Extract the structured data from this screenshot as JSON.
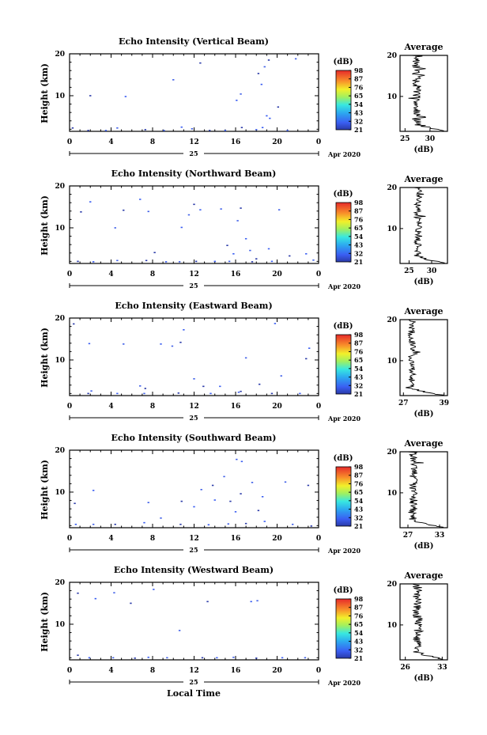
{
  "figure": {
    "xlabel": "Local Time",
    "date_day": "25",
    "date_label": "Apr 2020",
    "cbar_unit": "(dB)",
    "avg_title": "Average",
    "avg_xlabel": "(dB)"
  },
  "chart_data": [
    {
      "type": "heatmap",
      "title": "Echo Intensity (Vertical Beam)",
      "ylabel": "Height (km)",
      "xlim": [
        0,
        24
      ],
      "ylim": [
        1.5,
        20
      ],
      "x_ticks": [
        "0",
        "4",
        "8",
        "12",
        "16",
        "20",
        "0"
      ],
      "y_ticks": [
        10,
        20
      ],
      "colorbar": [
        "21",
        "32",
        "43",
        "54",
        "65",
        "76",
        "87",
        "98"
      ],
      "avg": {
        "title": "Average",
        "x_ticks": [
          "25",
          "30"
        ],
        "xlim": [
          24,
          33.5
        ],
        "ylim": [
          1.5,
          20
        ],
        "y_ticks": [
          10,
          20
        ],
        "base": 27.3,
        "amp": 0.9,
        "peak": 33
      },
      "points": [
        [
          2,
          10
        ],
        [
          5.4,
          9.8
        ],
        [
          10,
          13.8
        ],
        [
          12.6,
          17.8
        ],
        [
          16.1,
          8.9
        ],
        [
          16.5,
          10.4
        ],
        [
          18.2,
          15.3
        ],
        [
          18.5,
          12.7
        ],
        [
          18.8,
          16.9
        ],
        [
          19.2,
          18.5
        ],
        [
          19.3,
          4.6
        ],
        [
          21.8,
          18.8
        ],
        [
          20.1,
          7.3
        ],
        [
          19.0,
          5.2
        ],
        [
          4.6,
          2.3
        ],
        [
          7.3,
          1.9
        ],
        [
          10.8,
          2.5
        ],
        [
          11.8,
          2.1
        ],
        [
          16.6,
          2.4
        ],
        [
          18.6,
          2.4
        ],
        [
          18.0,
          1.9
        ],
        [
          1.8,
          1.7
        ],
        [
          3.5,
          1.7
        ],
        [
          9.1,
          1.7
        ],
        [
          13.5,
          1.7
        ],
        [
          15.0,
          1.7
        ],
        [
          21.0,
          1.7
        ],
        [
          0.3,
          2.3
        ]
      ]
    },
    {
      "type": "heatmap",
      "title": "Echo Intensity (Northward Beam)",
      "ylabel": "Height (km)",
      "xlim": [
        0,
        24
      ],
      "ylim": [
        1.5,
        20
      ],
      "x_ticks": [
        "0",
        "4",
        "8",
        "12",
        "16",
        "20",
        "0"
      ],
      "y_ticks": [
        10,
        20
      ],
      "colorbar": [
        "21",
        "32",
        "43",
        "54",
        "65",
        "76",
        "87",
        "98"
      ],
      "avg": {
        "title": "Average",
        "x_ticks": [
          "25",
          "30"
        ],
        "xlim": [
          23,
          33.5
        ],
        "ylim": [
          1.5,
          20
        ],
        "y_ticks": [
          10,
          20
        ],
        "base": 27,
        "amp": 0.9,
        "peak": 32.5
      },
      "points": [
        [
          1.1,
          13.8
        ],
        [
          2.0,
          16.2
        ],
        [
          4.4,
          10.0
        ],
        [
          5.2,
          14.2
        ],
        [
          6.8,
          16.8
        ],
        [
          7.6,
          13.9
        ],
        [
          8.2,
          4.1
        ],
        [
          10.8,
          10.1
        ],
        [
          11.5,
          13.1
        ],
        [
          12.0,
          15.6
        ],
        [
          12.6,
          14.3
        ],
        [
          14.6,
          14.5
        ],
        [
          15.2,
          5.8
        ],
        [
          15.8,
          3.8
        ],
        [
          16.2,
          11.7
        ],
        [
          16.5,
          14.7
        ],
        [
          17.0,
          7.4
        ],
        [
          17.4,
          4.6
        ],
        [
          18.0,
          2.6
        ],
        [
          19.2,
          5.0
        ],
        [
          20.2,
          14.3
        ],
        [
          21.2,
          3.3
        ],
        [
          22.8,
          3.8
        ],
        [
          23.5,
          2.3
        ],
        [
          0.8,
          2.0
        ],
        [
          2.3,
          1.9
        ],
        [
          4.6,
          2.2
        ],
        [
          7.4,
          2.2
        ],
        [
          9.3,
          1.9
        ],
        [
          10.6,
          1.9
        ],
        [
          12.2,
          2.0
        ],
        [
          14.0,
          2.0
        ],
        [
          15.4,
          2.0
        ],
        [
          17.6,
          1.9
        ],
        [
          19.5,
          2.0
        ]
      ]
    },
    {
      "type": "heatmap",
      "title": "Echo Intensity (Eastward Beam)",
      "ylabel": "Height (km)",
      "xlim": [
        0,
        24
      ],
      "ylim": [
        1.5,
        20
      ],
      "x_ticks": [
        "0",
        "4",
        "8",
        "12",
        "16",
        "20",
        "0"
      ],
      "y_ticks": [
        10,
        20
      ],
      "colorbar": [
        "21",
        "32",
        "43",
        "54",
        "65",
        "76",
        "87",
        "98"
      ],
      "avg": {
        "title": "Average",
        "x_ticks": [
          "27",
          "39"
        ],
        "xlim": [
          26,
          40
        ],
        "ylim": [
          1.5,
          20
        ],
        "y_ticks": [
          10,
          20
        ],
        "base": 29.5,
        "amp": 1.1,
        "peak": 38
      },
      "points": [
        [
          0.4,
          18.6
        ],
        [
          1.9,
          13.9
        ],
        [
          5.2,
          13.8
        ],
        [
          7.3,
          3.2
        ],
        [
          8.8,
          13.8
        ],
        [
          9.9,
          13.3
        ],
        [
          10.7,
          14.2
        ],
        [
          11.0,
          17.2
        ],
        [
          12.0,
          5.5
        ],
        [
          12.9,
          3.7
        ],
        [
          14.5,
          3.7
        ],
        [
          17.0,
          10.5
        ],
        [
          18.3,
          4.2
        ],
        [
          19.8,
          18.7
        ],
        [
          20.4,
          6.2
        ],
        [
          22.8,
          10.3
        ],
        [
          23.1,
          12.8
        ],
        [
          6.8,
          3.8
        ],
        [
          1.8,
          2.0
        ],
        [
          4.6,
          2.0
        ],
        [
          7.2,
          2.0
        ],
        [
          10.5,
          2.1
        ],
        [
          13.6,
          2.0
        ],
        [
          16.3,
          2.3
        ],
        [
          19.5,
          2.0
        ],
        [
          22.2,
          2.0
        ],
        [
          2.1,
          2.6
        ],
        [
          16.5,
          2.5
        ]
      ]
    },
    {
      "type": "heatmap",
      "title": "Echo Intensity (Southward Beam)",
      "ylabel": "Height (km)",
      "xlim": [
        0,
        24
      ],
      "ylim": [
        1.5,
        20
      ],
      "x_ticks": [
        "0",
        "4",
        "8",
        "12",
        "16",
        "20",
        "0"
      ],
      "y_ticks": [
        10,
        20
      ],
      "colorbar": [
        "21",
        "32",
        "43",
        "54",
        "65",
        "76",
        "87",
        "98"
      ],
      "avg": {
        "title": "Average",
        "x_ticks": [
          "27",
          "33"
        ],
        "xlim": [
          25.5,
          34.5
        ],
        "ylim": [
          1.5,
          20
        ],
        "y_ticks": [
          10,
          20
        ],
        "base": 28,
        "amp": 0.8,
        "peak": 33.5
      },
      "points": [
        [
          0.5,
          7.3
        ],
        [
          2.3,
          10.4
        ],
        [
          7.6,
          7.5
        ],
        [
          10.8,
          7.8
        ],
        [
          12.0,
          6.5
        ],
        [
          12.7,
          10.6
        ],
        [
          13.8,
          11.6
        ],
        [
          14.0,
          8.1
        ],
        [
          14.9,
          13.7
        ],
        [
          15.5,
          7.8
        ],
        [
          16.0,
          5.3
        ],
        [
          16.1,
          17.8
        ],
        [
          16.5,
          9.6
        ],
        [
          16.6,
          17.3
        ],
        [
          17.6,
          12.3
        ],
        [
          18.2,
          5.6
        ],
        [
          18.6,
          8.9
        ],
        [
          20.8,
          12.4
        ],
        [
          23.0,
          11.6
        ],
        [
          0.6,
          2.3
        ],
        [
          2.3,
          2.3
        ],
        [
          4.4,
          2.3
        ],
        [
          7.2,
          2.7
        ],
        [
          8.8,
          3.8
        ],
        [
          10.7,
          2.3
        ],
        [
          13.4,
          2.2
        ],
        [
          15.3,
          2.4
        ],
        [
          17.0,
          2.5
        ],
        [
          18.8,
          3.0
        ],
        [
          21.5,
          2.3
        ],
        [
          23.3,
          1.9
        ]
      ]
    },
    {
      "type": "heatmap",
      "title": "Echo Intensity (Westward Beam)",
      "ylabel": "Height (km)",
      "xlim": [
        0,
        24
      ],
      "ylim": [
        1.5,
        20
      ],
      "x_ticks": [
        "0",
        "4",
        "8",
        "12",
        "16",
        "20",
        "0"
      ],
      "y_ticks": [
        10,
        20
      ],
      "colorbar": [
        "21",
        "32",
        "43",
        "54",
        "65",
        "76",
        "87",
        "98"
      ],
      "avg": {
        "title": "Average",
        "x_ticks": [
          "26",
          "33"
        ],
        "xlim": [
          25,
          34
        ],
        "ylim": [
          1.5,
          20
        ],
        "y_ticks": [
          10,
          20
        ],
        "base": 28.3,
        "amp": 0.9,
        "peak": 33
      },
      "points": [
        [
          0.8,
          17.4
        ],
        [
          2.5,
          16.1
        ],
        [
          4.3,
          17.5
        ],
        [
          5.9,
          15.0
        ],
        [
          8.1,
          18.3
        ],
        [
          10.6,
          8.5
        ],
        [
          13.3,
          15.4
        ],
        [
          17.5,
          15.4
        ],
        [
          18.1,
          15.6
        ],
        [
          0.8,
          2.6
        ],
        [
          1.9,
          2.0
        ],
        [
          4.2,
          2.0
        ],
        [
          6.3,
          1.9
        ],
        [
          7.6,
          2.1
        ],
        [
          9.4,
          2.0
        ],
        [
          12.8,
          2.0
        ],
        [
          14.2,
          2.0
        ],
        [
          15.8,
          2.1
        ],
        [
          18.0,
          1.9
        ],
        [
          20.5,
          2.0
        ],
        [
          22.7,
          2.0
        ]
      ]
    }
  ]
}
